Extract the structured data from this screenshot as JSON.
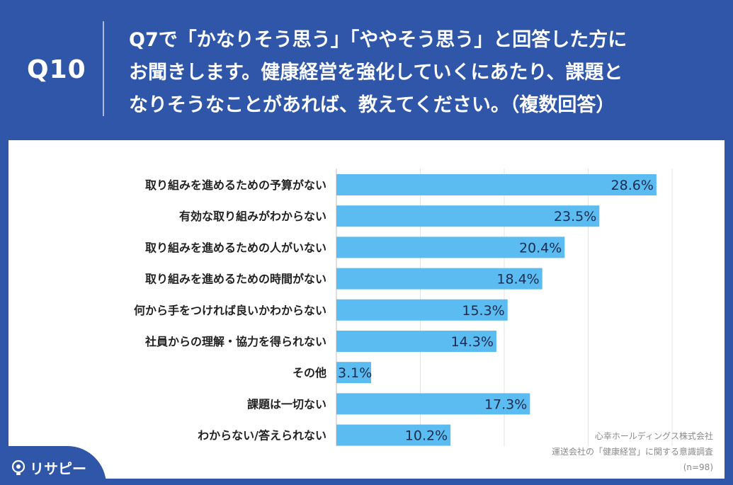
{
  "header": {
    "qnum": "Q10",
    "question": "Q7で「かなりそう思う」「ややそう思う」と回答した方に\nお聞きします。健康経営を強化していくにあたり、課題と\nなりそうなことがあれば、教えてください。（複数回答）"
  },
  "chart_data": {
    "type": "bar",
    "orientation": "horizontal",
    "categories": [
      "取り組みを進めるための予算がない",
      "有効な取り組みがわからない",
      "取り組みを進めるための人がいない",
      "取り組みを進めるための時間がない",
      "何から手をつければ良いかわからない",
      "社員からの理解・協力を得られない",
      "その他",
      "課題は一切ない",
      "わからない/答えられない"
    ],
    "values": [
      28.6,
      23.5,
      20.4,
      18.4,
      15.3,
      14.3,
      3.1,
      17.3,
      10.2
    ],
    "value_labels": [
      "28.6%",
      "23.5%",
      "20.4%",
      "18.4%",
      "15.3%",
      "14.3%",
      "3.1%",
      "17.3%",
      "10.2%"
    ],
    "xlim": [
      0,
      30
    ],
    "grid": true,
    "bar_color": "#5bbcf2",
    "label_color": "#1a2b4d"
  },
  "footer": {
    "company": "心幸ホールディングス株式会社",
    "survey": "運送会社の「健康経営」に関する意識調査",
    "sample": "(n=98)"
  },
  "logo": {
    "text": "リサピー",
    "icon": "lightbulb-icon"
  },
  "colors": {
    "background": "#2f56a8",
    "panel": "#ffffff",
    "text_white": "#ffffff"
  }
}
